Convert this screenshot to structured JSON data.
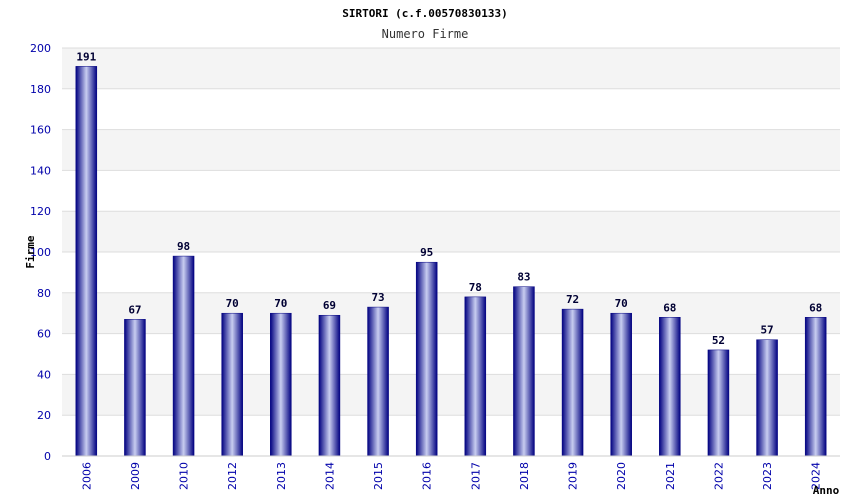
{
  "chart_data": {
    "type": "bar",
    "title": "SIRTORI (c.f.00570830133)",
    "subtitle": "Numero Firme",
    "xlabel": "Anno",
    "ylabel": "Firme",
    "categories": [
      "2006",
      "2009",
      "2010",
      "2012",
      "2013",
      "2014",
      "2015",
      "2016",
      "2017",
      "2018",
      "2019",
      "2020",
      "2021",
      "2022",
      "2023",
      "2024"
    ],
    "values": [
      191,
      67,
      98,
      70,
      70,
      69,
      73,
      95,
      78,
      83,
      72,
      70,
      68,
      52,
      57,
      68
    ],
    "ylim": [
      0,
      200
    ],
    "yticks": [
      0,
      20,
      40,
      60,
      80,
      100,
      120,
      140,
      160,
      180,
      200
    ],
    "grid": true,
    "legend": "none",
    "colors": {
      "bar_dark": "#000080",
      "bar_light": "#c8cdf0",
      "band": "#f4f4f4",
      "grid": "#dddddd",
      "tick_text": "#0000aa"
    }
  }
}
